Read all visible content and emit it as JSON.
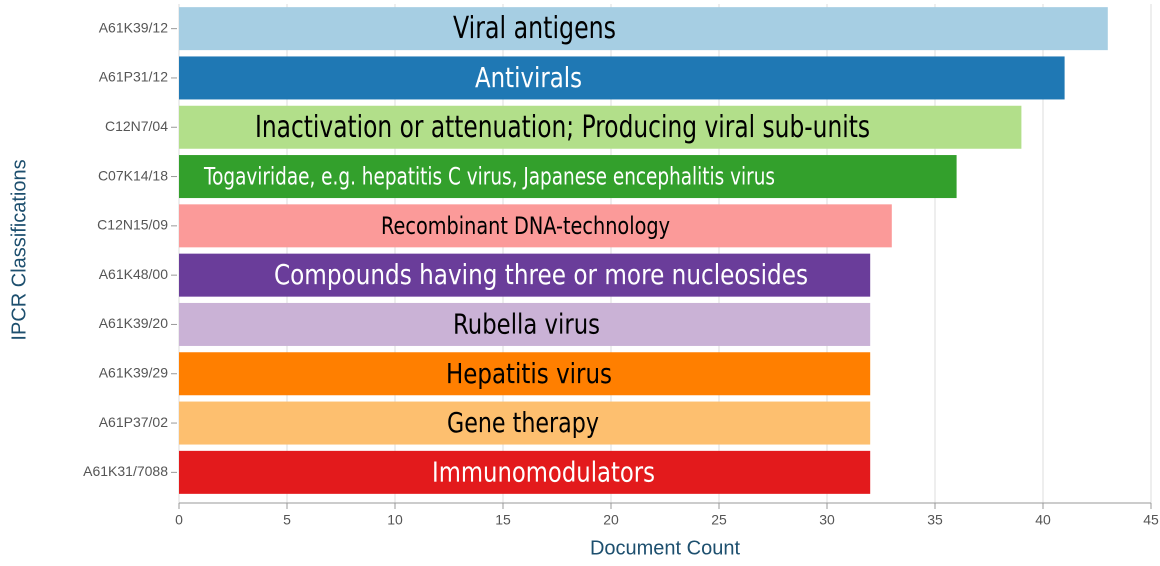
{
  "chart_data": {
    "type": "barh",
    "categories": [
      "A61K39/12",
      "A61P31/12",
      "C12N7/04",
      "C07K14/18",
      "C12N15/09",
      "A61K48/00",
      "A61K39/20",
      "A61K39/29",
      "A61P37/02",
      "A61K31/7088"
    ],
    "values": [
      43,
      41,
      39,
      36,
      33,
      32,
      32,
      32,
      32,
      32
    ],
    "colors": [
      "#a6cee3",
      "#1f78b4",
      "#b2df8a",
      "#33a02c",
      "#fb9a99",
      "#6a3d9a",
      "#cab2d6",
      "#ff7f00",
      "#fdbf6f",
      "#e31a1c"
    ],
    "annotations": [
      "Viral antigens",
      "Antivirals",
      "Inactivation or attenuation; Producing viral sub-units",
      "Togaviridae, e.g.  hepatitis C virus, Japanese encephalitis virus",
      "Recombinant DNA-technology",
      "Compounds having three or more nucleosides",
      "Rubella virus",
      "Hepatitis virus",
      "Gene therapy",
      "Immunomodulators"
    ],
    "xlabel": "Document Count",
    "ylabel": "IPCR Classifications",
    "xlim": [
      0,
      45
    ],
    "xticks": [
      0,
      5,
      10,
      15,
      20,
      25,
      30,
      35,
      40,
      45
    ],
    "grid": true
  }
}
